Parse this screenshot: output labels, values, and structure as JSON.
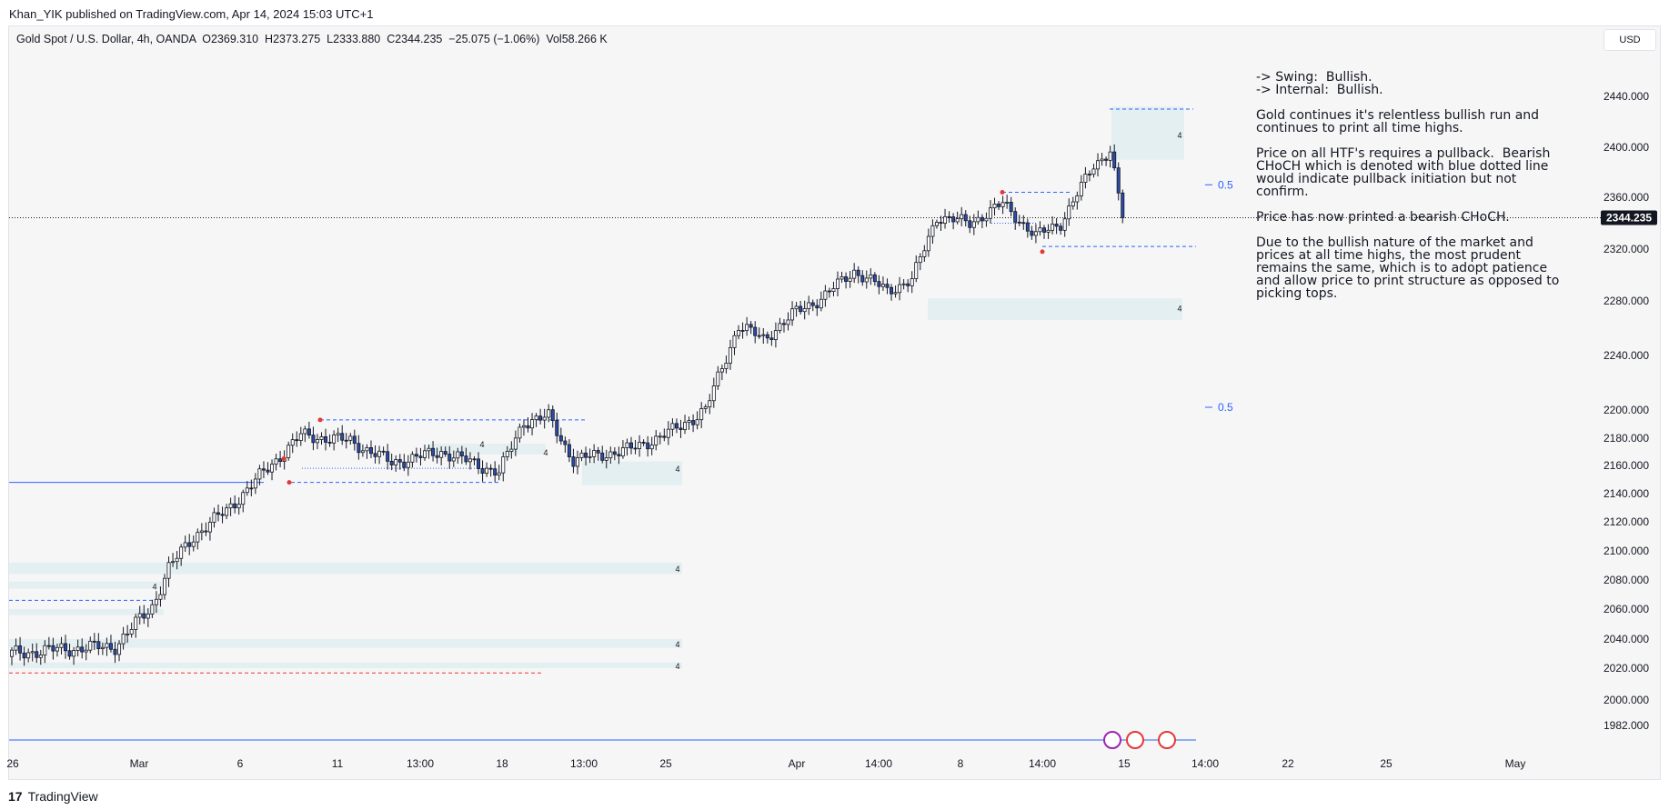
{
  "publisher": "Khan_YIK published on TradingView.com, Apr 14, 2024 15:03 UTC+1",
  "legend": "Gold Spot / U.S. Dollar, 4h, OANDA  O2369.310  H2373.275  L2333.880  C2344.235  −25.075 (−1.06%)  Vol58.266 K",
  "currency": "USD",
  "footer": {
    "logo": "17",
    "name": "TradingView"
  },
  "notes": [
    "-> Swing:  Bullish.\n-> Internal:  Bullish.",
    "Gold continues it's relentless bullish run and continues to print all time highs.",
    "Price on all HTF's requires a pullback.  Bearish CHoCH which is denoted with blue dotted line would indicate pullback initiation but not confirm.",
    "Price has now printed a bearish CHoCH.",
    "Due to the bullish nature of the market and prices at all time highs, the most prudent remains the same, which is to adopt patience and allow price to print structure as opposed to picking tops."
  ],
  "colors": {
    "bull": "#ffffff",
    "bear": "#2a4ba8",
    "wick": "#131722",
    "zone": "#e4eff2",
    "accent": "#2962ff",
    "red": "#e53935"
  },
  "chart_data": {
    "type": "candlestick",
    "title": "Gold Spot / U.S. Dollar, 4h, OANDA",
    "ylim": [
      1970,
      2460
    ],
    "y_ticks": [
      1982,
      2000,
      2020,
      2040,
      2060,
      2080,
      2100,
      2120,
      2140,
      2160,
      2180,
      2200,
      2240,
      2280,
      2320,
      2360,
      2400,
      2440
    ],
    "y_tick_labels": [
      "1982.000",
      "2000.000",
      "2020.000",
      "2040.000",
      "2060.000",
      "2080.000",
      "2100.000",
      "2120.000",
      "2140.000",
      "2160.000",
      "2180.000",
      "2200.000",
      "2240.000",
      "2280.000",
      "2320.000",
      "2360.000",
      "2400.000",
      "2440.000"
    ],
    "x_ticks": [
      "26",
      "Mar",
      "6",
      "11",
      "13:00",
      "18",
      "13:00",
      "25",
      "Apr",
      "14:00",
      "8",
      "14:00",
      "15",
      "14:00",
      "22",
      "25",
      "May"
    ],
    "last_price": 2344.235,
    "last_price_label": "2344.235",
    "fib_label": "0.5",
    "zone_label": "4",
    "key_points": [
      {
        "bar": 0,
        "close": 2030
      },
      {
        "bar": 12,
        "close": 2033
      },
      {
        "bar": 25,
        "close": 2035
      },
      {
        "bar": 34,
        "close": 2062
      },
      {
        "bar": 38,
        "close": 2088
      },
      {
        "bar": 44,
        "close": 2110
      },
      {
        "bar": 52,
        "close": 2128
      },
      {
        "bar": 60,
        "close": 2152
      },
      {
        "bar": 70,
        "close": 2182
      },
      {
        "bar": 82,
        "close": 2178
      },
      {
        "bar": 92,
        "close": 2162
      },
      {
        "bar": 104,
        "close": 2170
      },
      {
        "bar": 118,
        "close": 2155
      },
      {
        "bar": 124,
        "close": 2192
      },
      {
        "bar": 130,
        "close": 2195
      },
      {
        "bar": 136,
        "close": 2164
      },
      {
        "bar": 150,
        "close": 2172
      },
      {
        "bar": 160,
        "close": 2185
      },
      {
        "bar": 168,
        "close": 2200
      },
      {
        "bar": 176,
        "close": 2262
      },
      {
        "bar": 182,
        "close": 2252
      },
      {
        "bar": 190,
        "close": 2272
      },
      {
        "bar": 196,
        "close": 2282
      },
      {
        "bar": 204,
        "close": 2303
      },
      {
        "bar": 212,
        "close": 2288
      },
      {
        "bar": 218,
        "close": 2296
      },
      {
        "bar": 224,
        "close": 2345
      },
      {
        "bar": 232,
        "close": 2340
      },
      {
        "bar": 240,
        "close": 2355
      },
      {
        "bar": 248,
        "close": 2330
      },
      {
        "bar": 254,
        "close": 2340
      },
      {
        "bar": 262,
        "close": 2385
      },
      {
        "bar": 266,
        "close": 2398
      },
      {
        "bar": 269,
        "close": 2344
      }
    ]
  }
}
